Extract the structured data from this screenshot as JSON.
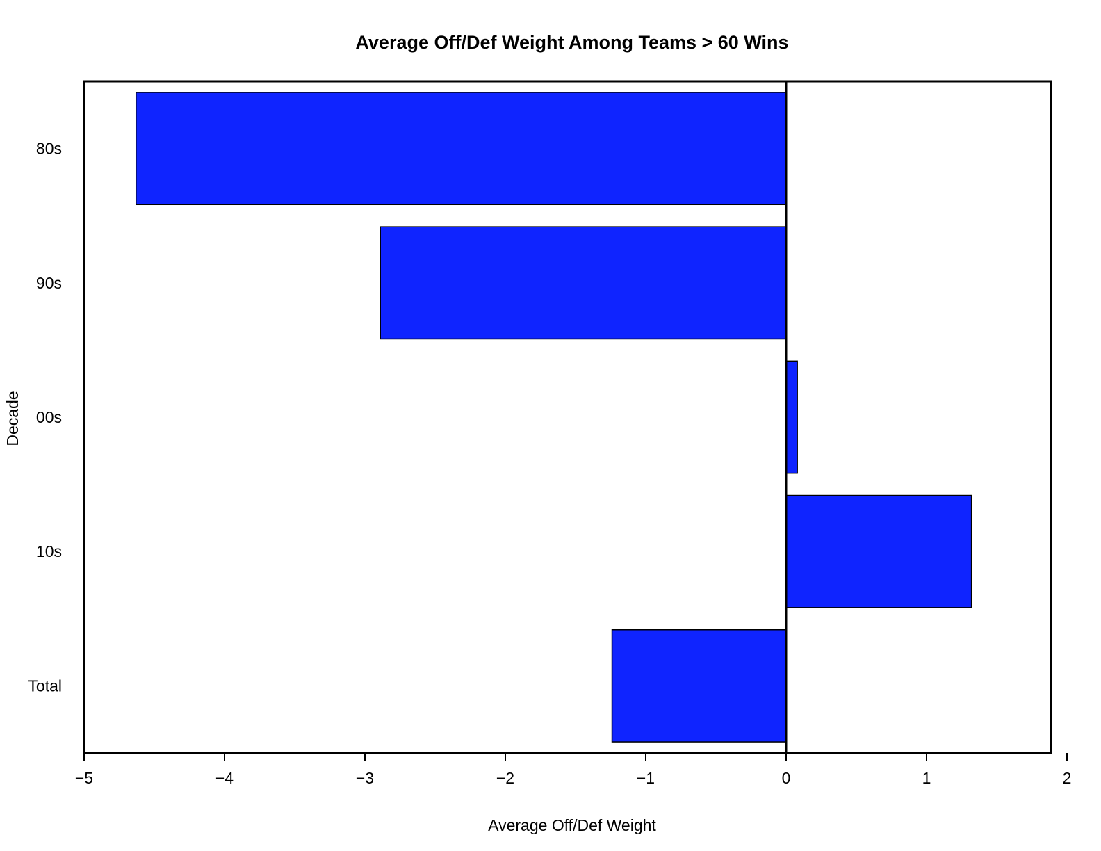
{
  "chart_data": {
    "type": "bar",
    "orientation": "horizontal",
    "title": "Average Off/Def Weight Among Teams > 60 Wins",
    "xlabel": "Average Off/Def Weight",
    "ylabel": "Decade",
    "categories": [
      "80s",
      "90s",
      "00s",
      "10s",
      "Total"
    ],
    "values": [
      -4.63,
      -2.89,
      0.08,
      1.32,
      -1.24
    ],
    "xlim": [
      -5,
      2
    ],
    "xticks": [
      -5,
      -4,
      -3,
      -2,
      -1,
      0,
      1,
      2
    ],
    "xtick_labels": [
      "−5",
      "−4",
      "−3",
      "−2",
      "−1",
      "0",
      "1",
      "2"
    ],
    "bar_color": "#0f24ff",
    "zero_line": true,
    "grid": false,
    "legend": false
  }
}
